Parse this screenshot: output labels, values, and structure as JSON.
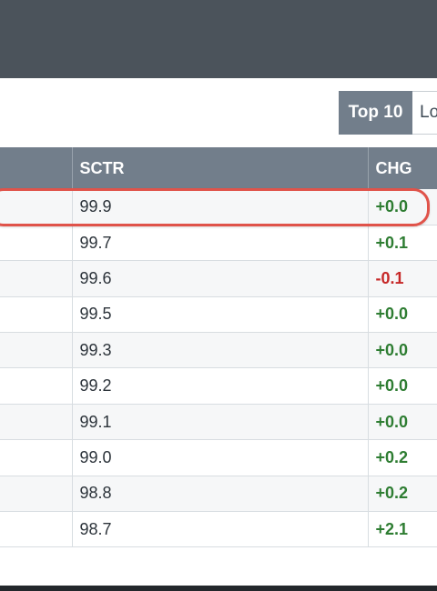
{
  "toggle": {
    "active_label": "Top 10",
    "inactive_label": "Lo"
  },
  "table": {
    "columns": [
      "",
      "SCTR",
      "CHG"
    ],
    "rows": [
      {
        "sctr": "99.9",
        "chg": "+0.0",
        "dir": "pos"
      },
      {
        "sctr": "99.7",
        "chg": "+0.1",
        "dir": "pos"
      },
      {
        "sctr": "99.6",
        "chg": "-0.1",
        "dir": "neg"
      },
      {
        "sctr": "99.5",
        "chg": "+0.0",
        "dir": "pos"
      },
      {
        "sctr": "99.3",
        "chg": "+0.0",
        "dir": "pos"
      },
      {
        "sctr": "99.2",
        "chg": "+0.0",
        "dir": "pos"
      },
      {
        "sctr": "99.1",
        "chg": "+0.0",
        "dir": "pos"
      },
      {
        "sctr": "99.0",
        "chg": "+0.2",
        "dir": "pos"
      },
      {
        "sctr": "98.8",
        "chg": "+0.2",
        "dir": "pos"
      },
      {
        "sctr": "98.7",
        "chg": "+2.1",
        "dir": "pos"
      }
    ]
  },
  "colors": {
    "header_bg": "#727e8b",
    "top_bar_bg": "#4b535b",
    "positive": "#2e7d32",
    "negative": "#c62828",
    "highlight": "#e0534a"
  }
}
